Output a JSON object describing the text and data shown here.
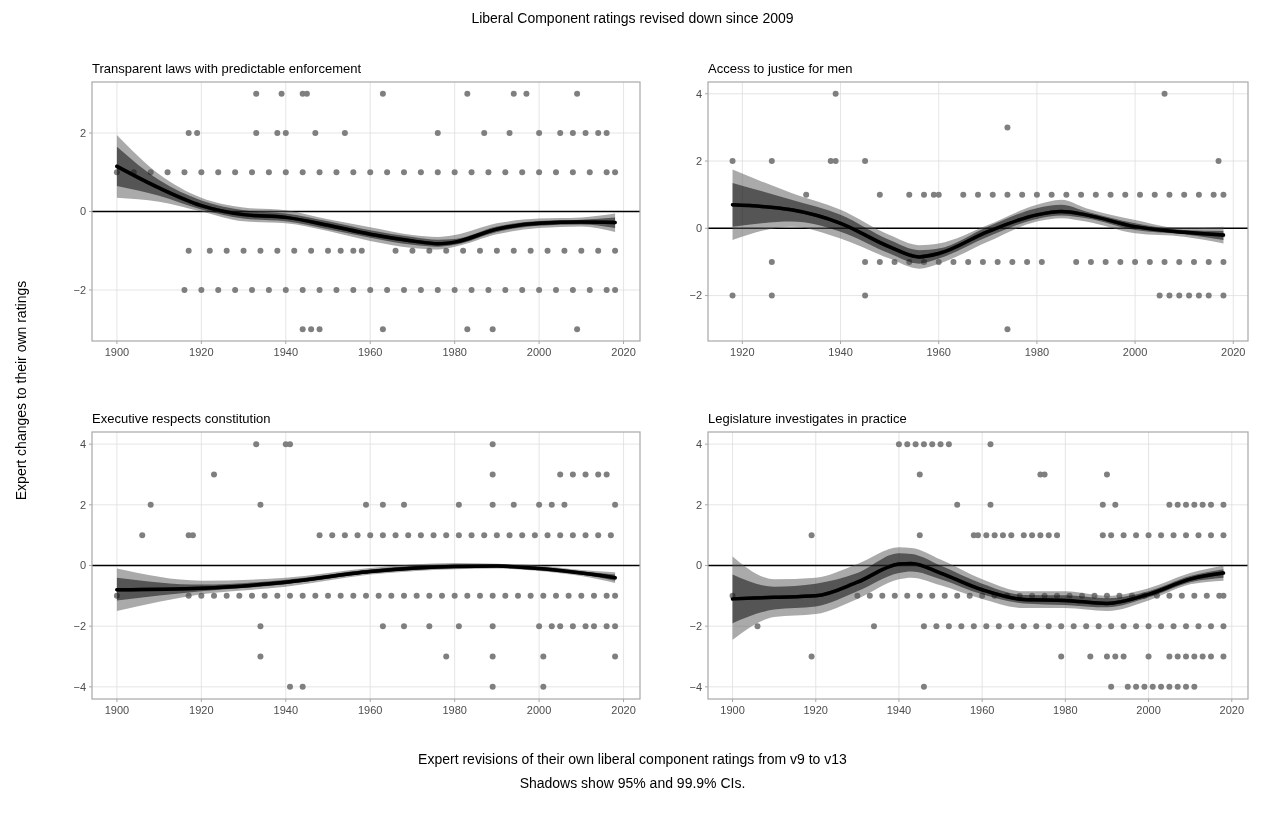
{
  "chart_data": [
    {
      "type": "line",
      "title": "Transparent laws with predictable enforcement",
      "xlim": [
        1894.1,
        2023.9
      ],
      "ylim": [
        -3.3,
        3.3
      ],
      "xticks": [
        1900,
        1920,
        1940,
        1960,
        1980,
        2000,
        2020
      ],
      "yticks": [
        -2,
        0,
        2
      ],
      "grid": true,
      "ref_lines": [
        {
          "axis": "y",
          "value": 0,
          "color": "#000000"
        }
      ],
      "series": [
        {
          "type": "scatter",
          "color": "#7f7f7f",
          "x": [
            1933,
            1939,
            1944,
            1945,
            1963,
            1983,
            1994,
            1997,
            2009,
            1917,
            1919,
            1933,
            1938,
            1940,
            1947,
            1954,
            1976,
            1987,
            1993,
            2000,
            2005,
            2008,
            2011,
            2014,
            2016,
            1900,
            1904,
            1908,
            1912,
            1916,
            1920,
            1924,
            1928,
            1932,
            1936,
            1940,
            1944,
            1948,
            1952,
            1956,
            1960,
            1964,
            1968,
            1972,
            1976,
            1980,
            1984,
            1988,
            1992,
            1996,
            2000,
            2004,
            2008,
            2012,
            2016,
            2018,
            1917,
            1922,
            1926,
            1930,
            1934,
            1938,
            1942,
            1946,
            1950,
            1953,
            1956,
            1958,
            1966,
            1970,
            1974,
            1978,
            1982,
            1986,
            1990,
            1994,
            1998,
            2002,
            2006,
            2010,
            2014,
            2018,
            1916,
            1920,
            1924,
            1928,
            1932,
            1936,
            1940,
            1944,
            1948,
            1952,
            1956,
            1960,
            1964,
            1968,
            1972,
            1976,
            1980,
            1984,
            1988,
            1992,
            1996,
            2000,
            2004,
            2008,
            2012,
            2016,
            2018,
            1944,
            1946,
            1948,
            1963,
            1983,
            1989,
            2009
          ],
          "values": [
            3,
            3,
            3,
            3,
            3,
            3,
            3,
            3,
            3,
            2,
            2,
            2,
            2,
            2,
            2,
            2,
            2,
            2,
            2,
            2,
            2,
            2,
            2,
            2,
            2,
            1,
            1,
            1,
            1,
            1,
            1,
            1,
            1,
            1,
            1,
            1,
            1,
            1,
            1,
            1,
            1,
            1,
            1,
            1,
            1,
            1,
            1,
            1,
            1,
            1,
            1,
            1,
            1,
            1,
            1,
            1,
            -1,
            -1,
            -1,
            -1,
            -1,
            -1,
            -1,
            -1,
            -1,
            -1,
            -1,
            -1,
            -1,
            -1,
            -1,
            -1,
            -1,
            -1,
            -1,
            -1,
            -1,
            -1,
            -1,
            -1,
            -1,
            -1,
            -2,
            -2,
            -2,
            -2,
            -2,
            -2,
            -2,
            -2,
            -2,
            -2,
            -2,
            -2,
            -2,
            -2,
            -2,
            -2,
            -2,
            -2,
            -2,
            -2,
            -2,
            -2,
            -2,
            -2,
            -2,
            -2,
            -2,
            -3,
            -3,
            -3,
            -3,
            -3,
            -3,
            -3
          ]
        },
        {
          "type": "line",
          "color": "#555555",
          "x": [
            1900,
            1910,
            1920,
            1930,
            1940,
            1950,
            1960,
            1970,
            1976,
            1980,
            1990,
            2000,
            2010,
            2018
          ],
          "values": [
            1.15,
            0.6,
            0.15,
            -0.08,
            -0.15,
            -0.35,
            -0.58,
            -0.75,
            -0.82,
            -0.78,
            -0.45,
            -0.3,
            -0.27,
            -0.28
          ],
          "lower": [
            0.35,
            0.25,
            0.0,
            -0.25,
            -0.3,
            -0.5,
            -0.75,
            -0.93,
            -0.97,
            -0.9,
            -0.58,
            -0.42,
            -0.38,
            -0.52
          ],
          "upper": [
            1.95,
            0.95,
            0.35,
            0.1,
            0.03,
            -0.2,
            -0.4,
            -0.6,
            -0.65,
            -0.6,
            -0.3,
            -0.18,
            -0.15,
            -0.05
          ]
        },
        {
          "type": "line",
          "color": "#000000",
          "x": [
            1900,
            1910,
            1920,
            1930,
            1940,
            1950,
            1960,
            1970,
            1976,
            1980,
            1990,
            2000,
            2010,
            2018
          ],
          "values": [
            1.15,
            0.6,
            0.15,
            -0.08,
            -0.15,
            -0.35,
            -0.58,
            -0.75,
            -0.82,
            -0.78,
            -0.45,
            -0.3,
            -0.27,
            -0.28
          ],
          "lower": [
            0.65,
            0.4,
            0.05,
            -0.18,
            -0.25,
            -0.45,
            -0.67,
            -0.85,
            -0.9,
            -0.85,
            -0.52,
            -0.36,
            -0.33,
            -0.42
          ],
          "upper": [
            1.65,
            0.8,
            0.28,
            0.03,
            -0.05,
            -0.25,
            -0.48,
            -0.65,
            -0.72,
            -0.7,
            -0.38,
            -0.24,
            -0.21,
            -0.15
          ]
        }
      ]
    },
    {
      "type": "line",
      "title": "Access to justice for men",
      "xlim": [
        1913,
        2023
      ],
      "ylim": [
        -3.35,
        4.35
      ],
      "xticks": [
        1920,
        1940,
        1960,
        1980,
        2000,
        2020
      ],
      "yticks": [
        -2,
        0,
        2,
        4
      ],
      "grid": true,
      "ref_lines": [
        {
          "axis": "y",
          "value": 0,
          "color": "#000000"
        }
      ],
      "series": [
        {
          "type": "scatter",
          "color": "#7f7f7f",
          "x": [
            1939,
            2006,
            1974,
            1918,
            1926,
            1938,
            1939,
            1945,
            2017,
            1933,
            1948,
            1954,
            1957,
            1959,
            1960,
            1965,
            1968,
            1971,
            1974,
            1977,
            1980,
            1983,
            1986,
            1989,
            1992,
            1995,
            1998,
            2001,
            2004,
            2007,
            2010,
            2013,
            2016,
            2018,
            1926,
            1945,
            1948,
            1951,
            1954,
            1957,
            1960,
            1963,
            1966,
            1969,
            1972,
            1975,
            1978,
            1981,
            1988,
            1991,
            1994,
            1997,
            2000,
            2003,
            2006,
            2009,
            2012,
            2015,
            2018,
            1918,
            1926,
            1945,
            2005,
            2007,
            2009,
            2011,
            2013,
            2015,
            2018,
            1974
          ],
          "values": [
            4,
            4,
            3,
            2,
            2,
            2,
            2,
            2,
            2,
            1,
            1,
            1,
            1,
            1,
            1,
            1,
            1,
            1,
            1,
            1,
            1,
            1,
            1,
            1,
            1,
            1,
            1,
            1,
            1,
            1,
            1,
            1,
            1,
            1,
            -1,
            -1,
            -1,
            -1,
            -1,
            -1,
            -1,
            -1,
            -1,
            -1,
            -1,
            -1,
            -1,
            -1,
            -1,
            -1,
            -1,
            -1,
            -1,
            -1,
            -1,
            -1,
            -1,
            -1,
            -1,
            -2,
            -2,
            -2,
            -2,
            -2,
            -2,
            -2,
            -2,
            -2,
            -2,
            -3
          ]
        },
        {
          "type": "line",
          "color": "#555555",
          "x": [
            1918,
            1930,
            1940,
            1950,
            1956,
            1960,
            1970,
            1980,
            1985,
            1990,
            2000,
            2010,
            2018
          ],
          "values": [
            0.7,
            0.55,
            0.15,
            -0.55,
            -0.85,
            -0.75,
            -0.1,
            0.4,
            0.5,
            0.4,
            0.05,
            -0.12,
            -0.2
          ],
          "lower": [
            -0.35,
            0.05,
            -0.3,
            -0.9,
            -1.2,
            -1.05,
            -0.4,
            0.2,
            0.3,
            0.2,
            -0.15,
            -0.25,
            -0.45
          ],
          "upper": [
            1.75,
            1.05,
            0.55,
            -0.2,
            -0.5,
            -0.45,
            0.1,
            0.7,
            0.85,
            0.6,
            0.25,
            0.0,
            0.05
          ]
        },
        {
          "type": "line",
          "color": "#000000",
          "x": [
            1918,
            1930,
            1940,
            1950,
            1956,
            1960,
            1970,
            1980,
            1985,
            1990,
            2000,
            2010,
            2018
          ],
          "values": [
            0.7,
            0.55,
            0.15,
            -0.55,
            -0.85,
            -0.75,
            -0.1,
            0.4,
            0.5,
            0.4,
            0.05,
            -0.12,
            -0.2
          ],
          "lower": [
            0.05,
            0.2,
            -0.1,
            -0.75,
            -1.05,
            -0.9,
            -0.25,
            0.28,
            0.38,
            0.3,
            -0.05,
            -0.18,
            -0.35
          ],
          "upper": [
            1.35,
            0.85,
            0.4,
            -0.35,
            -0.65,
            -0.6,
            0.05,
            0.6,
            0.7,
            0.5,
            0.15,
            -0.05,
            -0.08
          ]
        }
      ]
    },
    {
      "type": "line",
      "title": "Executive respects constitution",
      "xlim": [
        1894.1,
        2023.9
      ],
      "ylim": [
        -4.4,
        4.4
      ],
      "xticks": [
        1900,
        1920,
        1940,
        1960,
        1980,
        2000,
        2020
      ],
      "yticks": [
        -4,
        -2,
        0,
        2,
        4
      ],
      "grid": true,
      "ref_lines": [
        {
          "axis": "y",
          "value": 0,
          "color": "#000000"
        }
      ],
      "series": [
        {
          "type": "scatter",
          "color": "#7f7f7f",
          "x": [
            1933,
            1940,
            1941,
            1989,
            1923,
            1989,
            2005,
            2008,
            2011,
            2014,
            2016,
            1908,
            1934,
            1959,
            1963,
            1968,
            1981,
            1989,
            1994,
            2000,
            2003,
            2006,
            2018,
            1906,
            1917,
            1918,
            1948,
            1951,
            1954,
            1957,
            1960,
            1963,
            1966,
            1969,
            1972,
            1975,
            1978,
            1981,
            1984,
            1987,
            1990,
            1993,
            1996,
            1999,
            2002,
            2005,
            2008,
            2011,
            2014,
            2017,
            1900,
            1917,
            1920,
            1923,
            1926,
            1929,
            1932,
            1935,
            1938,
            1941,
            1944,
            1947,
            1950,
            1953,
            1956,
            1959,
            1962,
            1965,
            1968,
            1971,
            1974,
            1977,
            1980,
            1983,
            1986,
            1989,
            1992,
            1995,
            1998,
            2001,
            2004,
            2007,
            2010,
            2013,
            2016,
            2018,
            1934,
            1963,
            1968,
            1974,
            1981,
            1989,
            2000,
            2003,
            2005,
            2008,
            2011,
            2013,
            2016,
            2018,
            1934,
            1978,
            1989,
            2001,
            2018,
            1941,
            1944,
            1989,
            2001
          ],
          "values": [
            4,
            4,
            4,
            4,
            3,
            3,
            3,
            3,
            3,
            3,
            3,
            2,
            2,
            2,
            2,
            2,
            2,
            2,
            2,
            2,
            2,
            2,
            2,
            1,
            1,
            1,
            1,
            1,
            1,
            1,
            1,
            1,
            1,
            1,
            1,
            1,
            1,
            1,
            1,
            1,
            1,
            1,
            1,
            1,
            1,
            1,
            1,
            1,
            1,
            1,
            -1,
            -1,
            -1,
            -1,
            -1,
            -1,
            -1,
            -1,
            -1,
            -1,
            -1,
            -1,
            -1,
            -1,
            -1,
            -1,
            -1,
            -1,
            -1,
            -1,
            -1,
            -1,
            -1,
            -1,
            -1,
            -1,
            -1,
            -1,
            -1,
            -1,
            -1,
            -1,
            -1,
            -1,
            -1,
            -1,
            -2,
            -2,
            -2,
            -2,
            -2,
            -2,
            -2,
            -2,
            -2,
            -2,
            -2,
            -2,
            -2,
            -2,
            -3,
            -3,
            -3,
            -3,
            -3,
            -4,
            -4,
            -4,
            -4
          ]
        },
        {
          "type": "line",
          "color": "#555555",
          "x": [
            1900,
            1920,
            1940,
            1960,
            1980,
            1990,
            2000,
            2010,
            2018
          ],
          "values": [
            -0.8,
            -0.75,
            -0.55,
            -0.2,
            -0.03,
            -0.02,
            -0.1,
            -0.25,
            -0.4
          ],
          "lower": [
            -1.5,
            -0.95,
            -0.7,
            -0.3,
            -0.12,
            -0.1,
            -0.18,
            -0.35,
            -0.58
          ],
          "upper": [
            -0.1,
            -0.5,
            -0.4,
            -0.08,
            0.08,
            0.06,
            0.0,
            -0.15,
            -0.22
          ]
        },
        {
          "type": "line",
          "color": "#000000",
          "x": [
            1900,
            1920,
            1940,
            1960,
            1980,
            1990,
            2000,
            2010,
            2018
          ],
          "values": [
            -0.8,
            -0.75,
            -0.55,
            -0.2,
            -0.03,
            -0.02,
            -0.1,
            -0.25,
            -0.4
          ],
          "lower": [
            -1.15,
            -0.85,
            -0.62,
            -0.25,
            -0.08,
            -0.06,
            -0.14,
            -0.3,
            -0.5
          ],
          "upper": [
            -0.4,
            -0.63,
            -0.47,
            -0.13,
            0.03,
            0.03,
            -0.05,
            -0.2,
            -0.3
          ]
        }
      ]
    },
    {
      "type": "line",
      "title": "Legislature investigates in practice",
      "xlim": [
        1894.1,
        2023.9
      ],
      "ylim": [
        -4.4,
        4.4
      ],
      "xticks": [
        1900,
        1920,
        1940,
        1960,
        1980,
        2000,
        2020
      ],
      "yticks": [
        -4,
        -2,
        0,
        2,
        4
      ],
      "grid": true,
      "ref_lines": [
        {
          "axis": "y",
          "value": 0,
          "color": "#000000"
        }
      ],
      "series": [
        {
          "type": "scatter",
          "color": "#7f7f7f",
          "x": [
            1940,
            1942,
            1944,
            1946,
            1948,
            1950,
            1952,
            1962,
            1945,
            1974,
            1975,
            1990,
            1954,
            1962,
            1989,
            1992,
            2005,
            2007,
            2009,
            2011,
            2013,
            2015,
            2018,
            1919,
            1945,
            1958,
            1959,
            1961,
            1963,
            1965,
            1967,
            1970,
            1972,
            1974,
            1976,
            1978,
            1989,
            1991,
            1994,
            1997,
            2000,
            2003,
            2006,
            2009,
            2012,
            2015,
            2018,
            1900,
            1930,
            1933,
            1936,
            1939,
            1942,
            1945,
            1948,
            1951,
            1954,
            1957,
            1960,
            1963,
            1966,
            1969,
            1972,
            1975,
            1978,
            1981,
            1984,
            1987,
            1990,
            1993,
            1996,
            1999,
            2002,
            2005,
            2008,
            2011,
            2014,
            2017,
            2018,
            1906,
            1934,
            1946,
            1949,
            1952,
            1955,
            1958,
            1961,
            1964,
            1967,
            1970,
            1973,
            1976,
            1979,
            1982,
            1985,
            1988,
            1991,
            1994,
            1997,
            2000,
            2003,
            2006,
            2009,
            2012,
            2015,
            2018,
            1919,
            1979,
            1986,
            1990,
            1992,
            1994,
            2000,
            2005,
            2007,
            2009,
            2011,
            2013,
            2015,
            2018,
            1946,
            1991,
            1995,
            1997,
            1999,
            2001,
            2003,
            2005,
            2007,
            2009,
            2011
          ],
          "values": [
            4,
            4,
            4,
            4,
            4,
            4,
            4,
            4,
            3,
            3,
            3,
            3,
            2,
            2,
            2,
            2,
            2,
            2,
            2,
            2,
            2,
            2,
            2,
            1,
            1,
            1,
            1,
            1,
            1,
            1,
            1,
            1,
            1,
            1,
            1,
            1,
            1,
            1,
            1,
            1,
            1,
            1,
            1,
            1,
            1,
            1,
            1,
            -1,
            -1,
            -1,
            -1,
            -1,
            -1,
            -1,
            -1,
            -1,
            -1,
            -1,
            -1,
            -1,
            -1,
            -1,
            -1,
            -1,
            -1,
            -1,
            -1,
            -1,
            -1,
            -1,
            -1,
            -1,
            -1,
            -1,
            -1,
            -1,
            -1,
            -1,
            -1,
            -2,
            -2,
            -2,
            -2,
            -2,
            -2,
            -2,
            -2,
            -2,
            -2,
            -2,
            -2,
            -2,
            -2,
            -2,
            -2,
            -2,
            -2,
            -2,
            -2,
            -2,
            -2,
            -2,
            -2,
            -2,
            -2,
            -2,
            -3,
            -3,
            -3,
            -3,
            -3,
            -3,
            -3,
            -3,
            -3,
            -3,
            -3,
            -3,
            -3,
            -3,
            -4,
            -4,
            -4,
            -4,
            -4,
            -4,
            -4,
            -4,
            -4,
            -4,
            -4
          ]
        },
        {
          "type": "line",
          "color": "#555555",
          "x": [
            1900,
            1910,
            1920,
            1930,
            1940,
            1943,
            1950,
            1960,
            1970,
            1980,
            1990,
            2000,
            2010,
            2018
          ],
          "values": [
            -1.1,
            -1.05,
            -1.0,
            -0.55,
            0.05,
            0.07,
            -0.25,
            -0.8,
            -1.12,
            -1.15,
            -1.25,
            -0.95,
            -0.45,
            -0.25
          ],
          "lower": [
            -2.45,
            -1.7,
            -1.6,
            -1.1,
            -0.45,
            -0.4,
            -0.65,
            -1.1,
            -1.4,
            -1.4,
            -1.5,
            -1.15,
            -0.62,
            -0.5
          ],
          "upper": [
            0.3,
            -0.45,
            -0.4,
            0.05,
            0.6,
            0.58,
            0.2,
            -0.45,
            -0.85,
            -0.85,
            -1.0,
            -0.75,
            -0.25,
            0.0
          ]
        },
        {
          "type": "line",
          "color": "#000000",
          "x": [
            1900,
            1910,
            1920,
            1930,
            1940,
            1943,
            1950,
            1960,
            1970,
            1980,
            1990,
            2000,
            2010,
            2018
          ],
          "values": [
            -1.1,
            -1.05,
            -1.0,
            -0.55,
            0.05,
            0.07,
            -0.25,
            -0.8,
            -1.12,
            -1.15,
            -1.25,
            -0.95,
            -0.45,
            -0.25
          ],
          "lower": [
            -1.9,
            -1.45,
            -1.35,
            -0.85,
            -0.25,
            -0.2,
            -0.45,
            -0.95,
            -1.25,
            -1.3,
            -1.38,
            -1.05,
            -0.55,
            -0.4
          ],
          "upper": [
            -0.3,
            -0.7,
            -0.6,
            -0.25,
            0.4,
            0.38,
            0.0,
            -0.6,
            -0.97,
            -0.98,
            -1.08,
            -0.85,
            -0.35,
            -0.12
          ]
        }
      ]
    },
    {
      "type": "other",
      "title": "Liberal Component ratings revised down since 2009",
      "xlabel": "Expert revisions of their own liberal component ratings from v9 to v13",
      "ylabel": "Expert changes to their own ratings",
      "annotations": [
        "Shadows show 95% and 99.9% CIs."
      ]
    }
  ]
}
